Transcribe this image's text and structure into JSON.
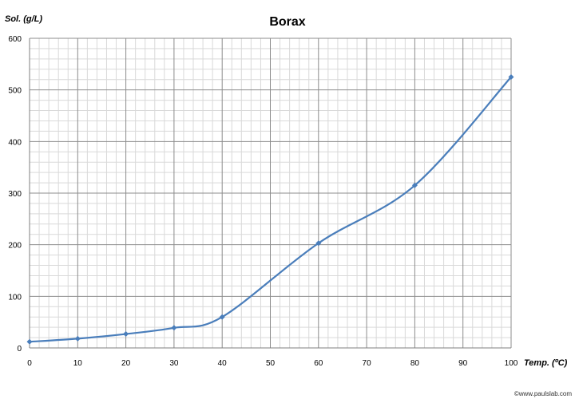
{
  "chart_data": {
    "type": "line",
    "title": "Borax",
    "xlabel": "Temp. (ºC)",
    "ylabel": "Sol. (g/L)",
    "xlim": [
      0,
      100
    ],
    "ylim": [
      0,
      600
    ],
    "x_ticks": [
      0,
      10,
      20,
      30,
      40,
      50,
      60,
      70,
      80,
      90,
      100
    ],
    "y_ticks": [
      0,
      100,
      200,
      300,
      400,
      500,
      600
    ],
    "grid": true,
    "minor_grid": true,
    "series": [
      {
        "color": "#4a7ebb",
        "x": [
          0,
          10,
          20,
          30,
          40,
          60,
          80,
          100
        ],
        "y": [
          12,
          18,
          27,
          39,
          60,
          203,
          315,
          525
        ]
      }
    ],
    "credit": "©www.paulslab.com"
  }
}
